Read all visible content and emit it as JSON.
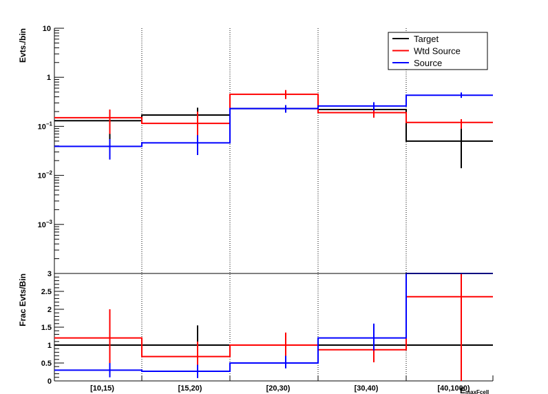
{
  "chart_data": [
    {
      "type": "step",
      "panel": "top",
      "ylabel": "Evts./bin",
      "yscale": "log",
      "ylim": [
        0.0001,
        10
      ],
      "y_tick_labels": [
        {
          "value": 10,
          "label": "10"
        },
        {
          "value": 1,
          "label": "1"
        },
        {
          "value": 0.1,
          "label": "10",
          "sup": "−1"
        },
        {
          "value": 0.01,
          "label": "10",
          "sup": "−2"
        },
        {
          "value": 0.001,
          "label": "10",
          "sup": "−3"
        }
      ],
      "categories": [
        "[10,15)",
        "[15,20)",
        "[20,30)",
        "[30,40)",
        "[40,1000)"
      ],
      "legend_position": "top-right",
      "series": [
        {
          "name": "Target",
          "color": "#000000",
          "values": [
            0.13,
            0.17,
            0.23,
            0.22,
            0.05
          ],
          "err_low": [
            0.04,
            0.12,
            0.19,
            0.18,
            0.014
          ],
          "err_high": [
            0.15,
            0.24,
            0.27,
            0.26,
            0.09
          ]
        },
        {
          "name": "Wtd Source",
          "color": "#ff0000",
          "values": [
            0.15,
            0.115,
            0.45,
            0.19,
            0.12
          ],
          "err_low": [
            0.07,
            0.04,
            0.36,
            0.15,
            0.09
          ],
          "err_high": [
            0.22,
            0.2,
            0.55,
            0.24,
            0.14
          ]
        },
        {
          "name": "Source",
          "color": "#0000ff",
          "values": [
            0.039,
            0.046,
            0.23,
            0.26,
            0.43
          ],
          "err_low": [
            0.021,
            0.026,
            0.19,
            0.21,
            0.38
          ],
          "err_high": [
            0.055,
            0.066,
            0.27,
            0.31,
            0.49
          ]
        }
      ]
    },
    {
      "type": "step",
      "panel": "bottom",
      "ylabel": "Frac Evts/Bin",
      "xlabel": "E",
      "xlabel_sub": "maxFcell",
      "ylim": [
        0,
        3
      ],
      "y_ticks": [
        0,
        0.5,
        1,
        1.5,
        2,
        2.5,
        3
      ],
      "categories": [
        "[10,15)",
        "[15,20)",
        "[20,30)",
        "[30,40)",
        "[40,1000)"
      ],
      "series": [
        {
          "color": "#000000",
          "values": [
            1,
            1,
            1,
            1,
            1
          ],
          "err_low": [
            1,
            0.45,
            1,
            1,
            0
          ],
          "err_high": [
            1,
            1.55,
            1,
            1,
            0.6
          ]
        },
        {
          "color": "#ff0000",
          "values": [
            1.2,
            0.68,
            1.0,
            0.87,
            2.35
          ],
          "err_low": [
            0.4,
            0.2,
            0.67,
            0.52,
            0
          ],
          "err_high": [
            2.0,
            1.1,
            1.35,
            1.27,
            3.0
          ]
        },
        {
          "color": "#0000ff",
          "values": [
            0.3,
            0.27,
            0.5,
            1.2,
            3.0
          ],
          "err_low": [
            0.1,
            0.08,
            0.35,
            0.85,
            3.0
          ],
          "err_high": [
            0.5,
            0.45,
            0.7,
            1.6,
            3.0
          ]
        }
      ]
    }
  ]
}
